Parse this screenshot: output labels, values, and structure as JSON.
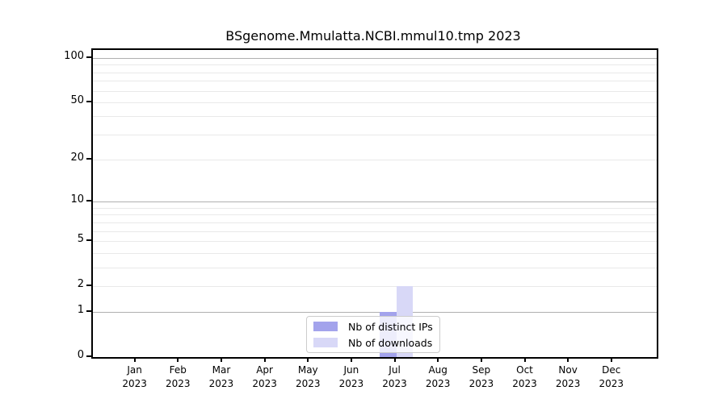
{
  "chart_data": {
    "type": "bar",
    "title": "BSgenome.Mmulatta.NCBI.mmul10.tmp 2023",
    "categories": [
      "Jan",
      "Feb",
      "Mar",
      "Apr",
      "May",
      "Jun",
      "Jul",
      "Aug",
      "Sep",
      "Oct",
      "Nov",
      "Dec"
    ],
    "x_year_label": "2023",
    "series": [
      {
        "name": "Nb of distinct IPs",
        "color": "#a3a3ec",
        "values": [
          0,
          0,
          0,
          0,
          0,
          0,
          1,
          0,
          0,
          0,
          0,
          0
        ]
      },
      {
        "name": "Nb of downloads",
        "color": "#d8d8f7",
        "values": [
          0,
          0,
          0,
          0,
          0,
          0,
          2,
          0,
          0,
          0,
          0,
          0
        ]
      }
    ],
    "y_scale": "log1p",
    "ylim": [
      0,
      113.4
    ],
    "y_tick_labels": [
      0,
      1,
      2,
      5,
      10,
      20,
      50,
      100
    ],
    "y_major_gridlines": [
      1,
      10,
      100
    ],
    "y_minor_gridlines": [
      2,
      3,
      4,
      5,
      6,
      7,
      8,
      9,
      20,
      30,
      40,
      50,
      60,
      70,
      80,
      90
    ],
    "grid": "horizontal only",
    "legend_position": "bottom center inside plot"
  },
  "colors": {
    "background": "#ffffff",
    "axis_spine": "#000000",
    "major_gridline": "#b0b0b0",
    "minor_gridline": "#e9e9e9",
    "legend_border": "#cccccc",
    "bar_distinct_ips": "#a3a3ec",
    "bar_downloads": "#d8d8f7"
  }
}
